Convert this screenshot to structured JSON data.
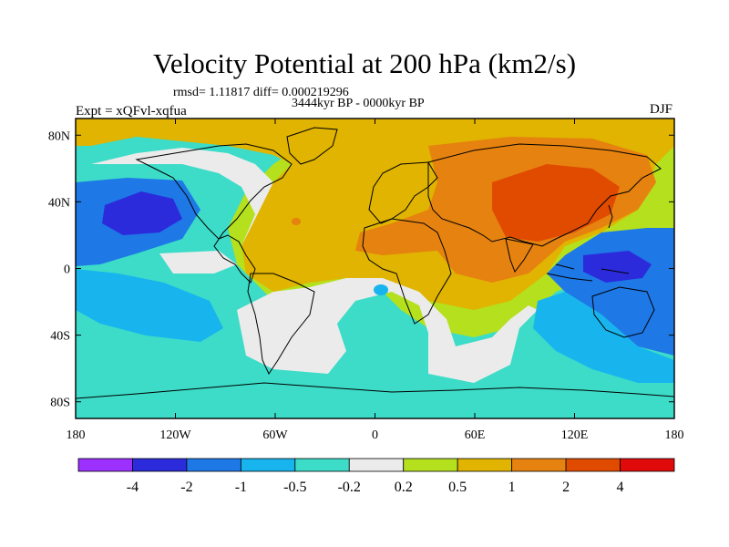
{
  "title": "Velocity Potential at 200 hPa (km2/s)",
  "stats": "rmsd= 1.11817 diff= 0.000219296",
  "period": "3444kyr BP - 0000kyr BP",
  "experiment": "Expt = xQFvl-xqfua",
  "season": "DJF",
  "map": {
    "lon_range": [
      -180,
      180
    ],
    "lat_range": [
      -90,
      90
    ],
    "y_ticks": [
      {
        "lat": 80,
        "label": "80N"
      },
      {
        "lat": 40,
        "label": "40N"
      },
      {
        "lat": 0,
        "label": "0"
      },
      {
        "lat": -40,
        "label": "40S"
      },
      {
        "lat": -80,
        "label": "80S"
      }
    ],
    "x_ticks": [
      {
        "lon": -180,
        "label": "180"
      },
      {
        "lon": -120,
        "label": "120W"
      },
      {
        "lon": -60,
        "label": "60W"
      },
      {
        "lon": 0,
        "label": "0"
      },
      {
        "lon": 60,
        "label": "60E"
      },
      {
        "lon": 120,
        "label": "120E"
      },
      {
        "lon": 180,
        "label": "180"
      }
    ],
    "features": [
      {
        "name": "north-pacific-low",
        "lon": -143,
        "lat": 32,
        "value": -2.5
      },
      {
        "name": "maritime-continent-low",
        "lon": 148,
        "lat": 5,
        "value": -2.5
      },
      {
        "name": "asia-high",
        "lon": 90,
        "lat": 35,
        "value": 2.5
      }
    ]
  },
  "colorbar": {
    "colors": [
      "#9b30ff",
      "#2b2bdc",
      "#1e78e6",
      "#18b4ee",
      "#3cdcc8",
      "#ebebeb",
      "#b4e01e",
      "#e0b400",
      "#e6820f",
      "#e14b00",
      "#e10a0a"
    ],
    "labels": [
      "-4",
      "-2",
      "-1",
      "-0.5",
      "-0.2",
      "0.2",
      "0.5",
      "1",
      "2",
      "4"
    ]
  }
}
